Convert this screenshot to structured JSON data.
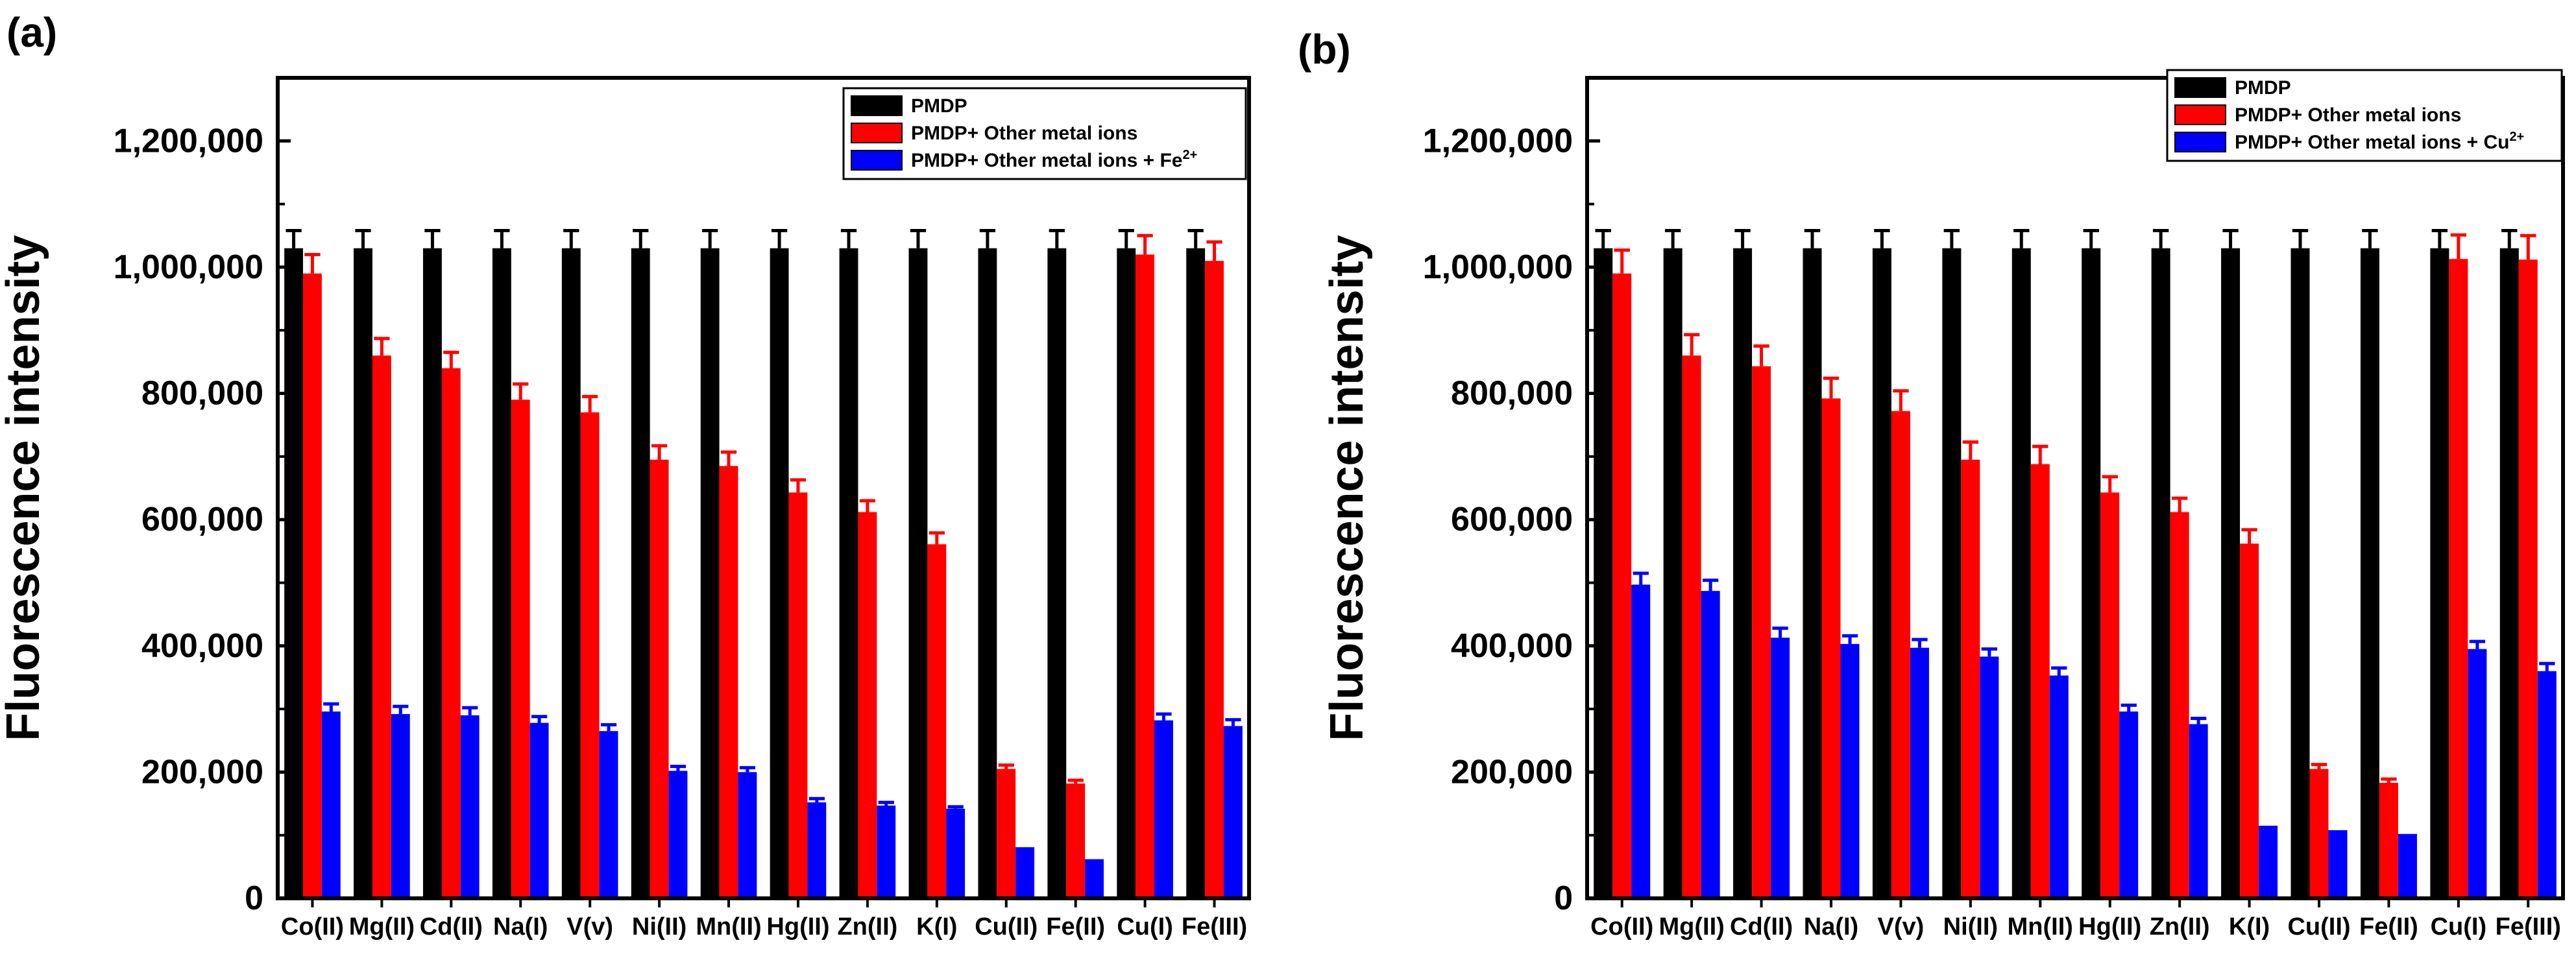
{
  "chart_data": [
    {
      "type": "bar",
      "panel_label": "(a)",
      "ylabel": "Fluorescence intensity",
      "ylim": [
        0,
        1300000
      ],
      "yticks": [
        0,
        200000,
        400000,
        600000,
        800000,
        1000000,
        1200000
      ],
      "ytick_labels": [
        "0",
        "200,000",
        "400,000",
        "600,000",
        "800,000",
        "1,000,000",
        "1,200,000"
      ],
      "legend_position": "top-right",
      "categories": [
        "Co(II)",
        "Mg(II)",
        "Cd(II)",
        "Na(I)",
        "V(v)",
        "Ni(II)",
        "Mn(II)",
        "Hg(II)",
        "Zn(II)",
        "K(I)",
        "Cu(II)",
        "Fe(II)",
        "Cu(I)",
        "Fe(III)"
      ],
      "series": [
        {
          "name": "PMDP",
          "legend_sup": "",
          "color": "#000000",
          "values": [
            1030000,
            1030000,
            1030000,
            1030000,
            1030000,
            1030000,
            1030000,
            1030000,
            1030000,
            1030000,
            1030000,
            1030000,
            1030000,
            1030000
          ],
          "errors": [
            28000,
            28000,
            28000,
            28000,
            28000,
            28000,
            28000,
            28000,
            28000,
            28000,
            28000,
            28000,
            28000,
            28000
          ]
        },
        {
          "name": "PMDP+ Other metal ions",
          "legend_sup": "",
          "color": "#ff0000",
          "values": [
            990000,
            860000,
            840000,
            790000,
            770000,
            695000,
            685000,
            643000,
            612000,
            561000,
            205000,
            182000,
            1020000,
            1010000
          ],
          "errors": [
            30000,
            27000,
            25000,
            25000,
            25000,
            22000,
            22000,
            20000,
            18000,
            18000,
            6000,
            5000,
            30000,
            30000
          ]
        },
        {
          "name": "PMDP+ Other metal ions + Fe",
          "legend_sup": "2+",
          "color": "#0000ff",
          "values": [
            296000,
            292000,
            290000,
            278000,
            265000,
            202000,
            200000,
            152000,
            147000,
            142000,
            81000,
            62000,
            282000,
            273000
          ],
          "errors": [
            12000,
            12000,
            12000,
            10000,
            10000,
            7000,
            7000,
            6000,
            5000,
            3000,
            0,
            0,
            10000,
            10000
          ]
        }
      ]
    },
    {
      "type": "bar",
      "panel_label": "(b)",
      "ylabel": "Fluorescence intensity",
      "ylim": [
        0,
        1300000
      ],
      "yticks": [
        0,
        200000,
        400000,
        600000,
        800000,
        1000000,
        1200000
      ],
      "ytick_labels": [
        "0",
        "200,000",
        "400,000",
        "600,000",
        "800,000",
        "1,000,000",
        "1,200,000"
      ],
      "legend_position": "top-right",
      "categories": [
        "Co(II)",
        "Mg(II)",
        "Cd(II)",
        "Na(I)",
        "V(v)",
        "Ni(II)",
        "Mn(II)",
        "Hg(II)",
        "Zn(II)",
        "K(I)",
        "Cu(II)",
        "Fe(II)",
        "Cu(I)",
        "Fe(III)"
      ],
      "series": [
        {
          "name": "PMDP",
          "legend_sup": "",
          "color": "#000000",
          "values": [
            1030000,
            1030000,
            1030000,
            1030000,
            1030000,
            1030000,
            1030000,
            1030000,
            1030000,
            1030000,
            1030000,
            1030000,
            1030000,
            1030000
          ],
          "errors": [
            28000,
            28000,
            28000,
            28000,
            28000,
            28000,
            28000,
            28000,
            28000,
            28000,
            28000,
            28000,
            28000,
            28000
          ]
        },
        {
          "name": "PMDP+ Other metal ions",
          "legend_sup": "",
          "color": "#ff0000",
          "values": [
            990000,
            860000,
            843000,
            792000,
            772000,
            695000,
            688000,
            643000,
            612000,
            562000,
            205000,
            183000,
            1013000,
            1012000
          ],
          "errors": [
            37000,
            33000,
            32000,
            32000,
            32000,
            28000,
            28000,
            25000,
            22000,
            22000,
            7000,
            6000,
            38000,
            38000
          ]
        },
        {
          "name": "PMDP+ Other metal ions + Cu",
          "legend_sup": "2+",
          "color": "#0000ff",
          "values": [
            497000,
            487000,
            413000,
            403000,
            397000,
            383000,
            353000,
            296000,
            276000,
            115000,
            108000,
            102000,
            395000,
            360000
          ],
          "errors": [
            18000,
            17000,
            15000,
            13000,
            13000,
            12000,
            12000,
            10000,
            9000,
            0,
            0,
            0,
            12000,
            12000
          ]
        }
      ]
    }
  ]
}
